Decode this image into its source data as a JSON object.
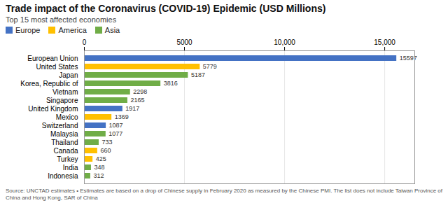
{
  "chart_data": {
    "type": "bar",
    "orientation": "horizontal",
    "title": "Trade impact of the Coronavirus (COVID-19) Epidemic (USD Millions)",
    "subtitle": "Top 15 most affected economies",
    "categories": [
      "European Union",
      "United States",
      "Japan",
      "Korea, Republic of",
      "Vietnam",
      "Singapore",
      "United Kingdom",
      "Mexico",
      "Switzerland",
      "Malaysia",
      "Thailand",
      "Canada",
      "Turkey",
      "India",
      "Indonesia"
    ],
    "values": [
      15597,
      5779,
      5187,
      3816,
      2298,
      2165,
      1917,
      1369,
      1087,
      1077,
      733,
      660,
      425,
      348,
      312
    ],
    "colors": [
      "#4472C4",
      "#FFC000",
      "#70AD47",
      "#70AD47",
      "#70AD47",
      "#70AD47",
      "#4472C4",
      "#FFC000",
      "#4472C4",
      "#70AD47",
      "#70AD47",
      "#FFC000",
      "#FFC000",
      "#70AD47",
      "#70AD47"
    ],
    "legend": "upper left",
    "legend_entries": [
      {
        "name": "Europe",
        "color": "#4472C4"
      },
      {
        "name": "America",
        "color": "#FFC000"
      },
      {
        "name": "Asia",
        "color": "#70AD47"
      }
    ],
    "xlim": [
      0,
      16500
    ],
    "xticks": [
      0,
      5000,
      {
        "value": 10000,
        "label": "10,000"
      },
      {
        "value": 15000,
        "label": "15,000"
      }
    ],
    "grid": true,
    "data_labels": true,
    "source": "Source: UNCTAD estimates • Estimates are based on a drop of Chinese supply in February 2020 as measured by the Chinese PMI. The list does not include Taiwan Province of\nChina and Hong Kong, SAR of China"
  }
}
